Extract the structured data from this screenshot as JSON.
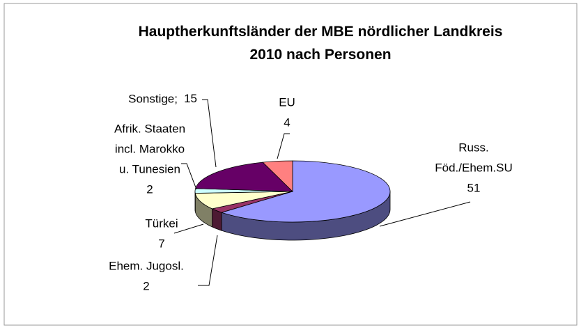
{
  "chart_data": {
    "type": "pie3d",
    "title": [
      "Hauptherkunftsländer der MBE nördlicher Landkreis",
      "2010 nach Personen"
    ],
    "categories": [
      [
        "Russ.",
        "Föd./Ehem.SU"
      ],
      [
        "Ehem. Jugosl."
      ],
      [
        "Türkei"
      ],
      [
        "Afrik. Staaten",
        "incl. Marokko",
        "u. Tunesien"
      ],
      [
        "Sonstige;"
      ],
      [
        "EU"
      ]
    ],
    "values": [
      51,
      2,
      7,
      2,
      15,
      4
    ],
    "colors": [
      "#9999ff",
      "#993366",
      "#ffffcc",
      "#ccffff",
      "#660066",
      "#ff8080"
    ]
  }
}
